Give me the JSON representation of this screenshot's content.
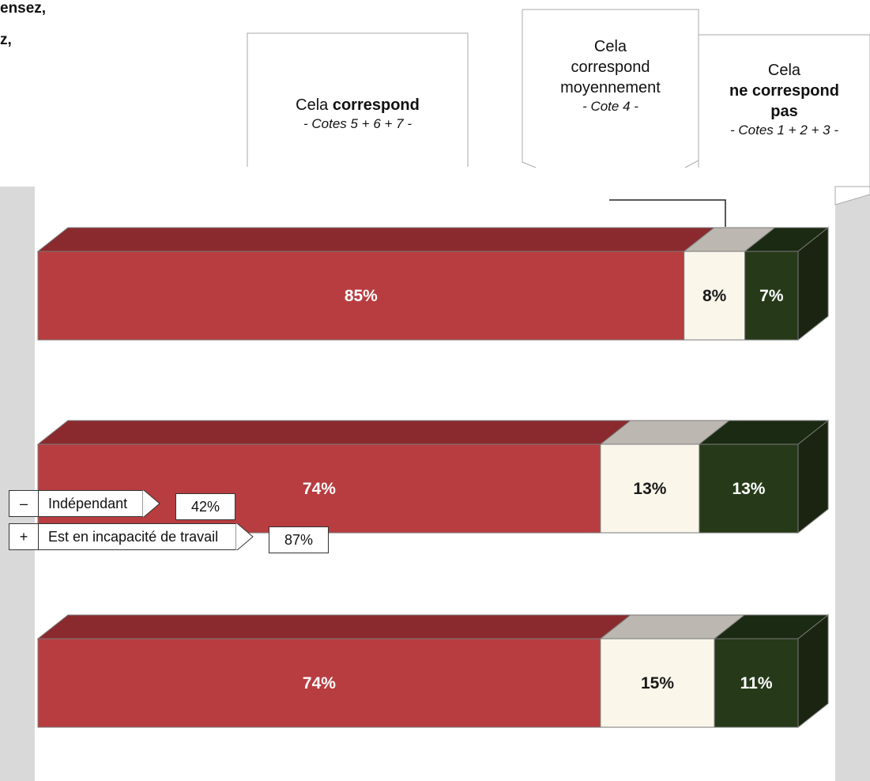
{
  "fragments": {
    "line1": "ensez,",
    "line2": "z,"
  },
  "chart_data": {
    "type": "bar",
    "stacked": true,
    "orientation": "horizontal",
    "legend_position": "top-right",
    "grid": false,
    "headers": [
      {
        "id": "correspond",
        "line1": "Cela",
        "bold": "correspond",
        "sub": "- Cotes 5 + 6 + 7 -"
      },
      {
        "id": "moyen",
        "line1": "Cela",
        "line2": "correspond",
        "line3": "moyennement",
        "sub": "- Cote 4 -"
      },
      {
        "id": "pas",
        "line1": "Cela",
        "bold1": "ne correspond",
        "bold2": "pas",
        "sub": "- Cotes 1 + 2 + 3 -"
      }
    ],
    "series": [
      {
        "key": "correspond",
        "values": [
          85,
          74,
          74
        ],
        "labels": [
          "85%",
          "74%",
          "74%"
        ],
        "front": "#b83d40",
        "top": "#8b2a2e"
      },
      {
        "key": "moyen",
        "values": [
          8,
          13,
          15
        ],
        "labels": [
          "8%",
          "13%",
          "15%"
        ],
        "front": "#faf6ea",
        "top": "#bcb8b1"
      },
      {
        "key": "pas",
        "values": [
          7,
          13,
          11
        ],
        "labels": [
          "7%",
          "13%",
          "11%"
        ],
        "front": "#263a1a",
        "top": "#1b2a12"
      }
    ],
    "label_colors": {
      "correspond": "#ffffff",
      "moyen": "#1a1a1a",
      "pas": "#ffffff"
    },
    "side_color": "#1a2410",
    "subgroups": [
      {
        "sign": "–",
        "label": "Indépendant",
        "value": "42%"
      },
      {
        "sign": "+",
        "label": "Est en incapacité de travail",
        "value": "87%"
      }
    ]
  }
}
